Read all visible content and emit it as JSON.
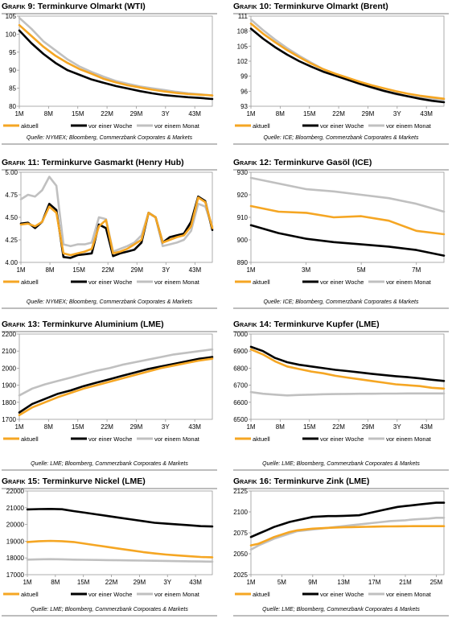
{
  "colors": {
    "aktuell": "#f5a623",
    "woche": "#000000",
    "monat": "#c0c0c0",
    "frame": "#999999"
  },
  "legend": {
    "aktuell": "aktuell",
    "woche": "vor einer Woche",
    "monat": "vor einem Monat"
  },
  "chart_data": [
    {
      "type": "line",
      "prefix": "Grafik 9",
      "title": "Terminkurve Olmarkt (WTI)",
      "source": "Quelle: NYMEX; Bloomberg, Commerzbank Corporates & Markets",
      "xticks": [
        "1M",
        "8M",
        "15M",
        "22M",
        "29M",
        "3Y",
        "43M"
      ],
      "ylim": [
        80,
        105
      ],
      "yticks": [
        80,
        85,
        90,
        95,
        100,
        105
      ],
      "series": [
        {
          "key": "aktuell",
          "values": [
            102.5,
            99.5,
            96.5,
            94,
            92,
            90.3,
            89,
            87.6,
            86.6,
            85.8,
            85.2,
            84.6,
            84.1,
            83.7,
            83.4,
            83.2,
            83
          ]
        },
        {
          "key": "woche",
          "values": [
            101,
            97.5,
            94.5,
            92,
            90,
            88.7,
            87.4,
            86.5,
            85.6,
            84.9,
            84.2,
            83.6,
            83.1,
            82.8,
            82.5,
            82.3,
            82
          ]
        },
        {
          "key": "monat",
          "values": [
            104.5,
            101.5,
            98,
            95.5,
            93,
            91,
            89.5,
            88.2,
            87,
            86.2,
            85.5,
            85,
            84.5,
            84,
            83.6,
            83.3,
            83
          ]
        }
      ]
    },
    {
      "type": "line",
      "prefix": "Grafik 10",
      "title": "Terminkurve Olmarkt (Brent)",
      "source": "Quelle: ICE; Bloomberg, Commerzbank Corporates & Markets",
      "xticks": [
        "1M",
        "8M",
        "15M",
        "22M",
        "29M",
        "3Y",
        "43M"
      ],
      "ylim": [
        93,
        111
      ],
      "yticks": [
        93,
        96,
        99,
        102,
        105,
        108,
        111
      ],
      "series": [
        {
          "key": "aktuell",
          "values": [
            109.5,
            107.5,
            105.8,
            104.2,
            102.8,
            101.5,
            100.4,
            99.5,
            98.7,
            97.9,
            97.2,
            96.6,
            96,
            95.5,
            95.1,
            94.8,
            94.5
          ]
        },
        {
          "key": "woche",
          "values": [
            108.5,
            106.5,
            104.8,
            103.3,
            102,
            100.9,
            99.9,
            99.1,
            98.3,
            97.5,
            96.8,
            96.1,
            95.5,
            95,
            94.5,
            94.1,
            93.8
          ]
        },
        {
          "key": "monat",
          "values": [
            110.3,
            108.2,
            106.3,
            104.6,
            103.1,
            101.7,
            100.4,
            99.4,
            98.4,
            97.5,
            96.7,
            96,
            95.4,
            95,
            94.7,
            94.5,
            94.3
          ]
        }
      ]
    },
    {
      "type": "line",
      "prefix": "Grafik 11",
      "title": "Terminkurve Gasmarkt (Henry Hub)",
      "source": "Quelle: NYMEX; Bloomberg, Commerzbank Corporates & Markets",
      "xticks": [
        "1M",
        "8M",
        "15M",
        "22M",
        "29M",
        "3Y",
        "43M"
      ],
      "ylim": [
        4,
        5
      ],
      "yticks": [
        4.0,
        4.25,
        4.5,
        4.75,
        5.0
      ],
      "ydec": 2,
      "series": [
        {
          "key": "aktuell",
          "values": [
            4.42,
            4.43,
            4.4,
            4.45,
            4.62,
            4.55,
            4.1,
            4.08,
            4.1,
            4.12,
            4.15,
            4.4,
            4.47,
            4.1,
            4.12,
            4.15,
            4.2,
            4.25,
            4.55,
            4.5,
            4.22,
            4.25,
            4.28,
            4.3,
            4.4,
            4.72,
            4.67,
            4.38
          ]
        },
        {
          "key": "woche",
          "values": [
            4.43,
            4.44,
            4.38,
            4.45,
            4.65,
            4.58,
            4.06,
            4.05,
            4.08,
            4.09,
            4.1,
            4.42,
            4.38,
            4.07,
            4.1,
            4.12,
            4.14,
            4.22,
            4.55,
            4.5,
            4.22,
            4.28,
            4.3,
            4.32,
            4.45,
            4.73,
            4.68,
            4.36
          ]
        },
        {
          "key": "monat",
          "values": [
            4.7,
            4.75,
            4.73,
            4.8,
            4.95,
            4.85,
            4.2,
            4.18,
            4.2,
            4.2,
            4.22,
            4.5,
            4.48,
            4.12,
            4.15,
            4.18,
            4.22,
            4.3,
            4.55,
            4.5,
            4.18,
            4.2,
            4.22,
            4.25,
            4.35,
            4.65,
            4.62,
            4.4
          ]
        }
      ]
    },
    {
      "type": "line",
      "prefix": "Grafik 12",
      "title": "Terminkurve Gasöl (ICE)",
      "source": "Quelle: ICE; Bloomberg, Commerzbank Corporates & Markets",
      "xticks": [
        "1M",
        "3M",
        "5M",
        "7M"
      ],
      "xpos": [
        0,
        2,
        4,
        6
      ],
      "xn": 8,
      "ylim": [
        890,
        930
      ],
      "yticks": [
        890,
        900,
        910,
        920,
        930
      ],
      "series": [
        {
          "key": "aktuell",
          "values": [
            915,
            912.5,
            912,
            910,
            910.5,
            908.5,
            904,
            902.5
          ]
        },
        {
          "key": "woche",
          "values": [
            906.5,
            903,
            900.5,
            899,
            898,
            897,
            895.5,
            893
          ]
        },
        {
          "key": "monat",
          "values": [
            927.5,
            925,
            922.5,
            921.5,
            920,
            918.5,
            916,
            912.5
          ]
        }
      ]
    },
    {
      "type": "line",
      "prefix": "Grafik 13",
      "title": "Terminkurve Aluminium (LME)",
      "source": "Quelle: LME; Bloomberg, Commerzbank Corporates & Markets",
      "xticks": [
        "1M",
        "8M",
        "15M",
        "22M",
        "29M",
        "3Y",
        "43M"
      ],
      "ylim": [
        1700,
        2200
      ],
      "yticks": [
        1700,
        1800,
        1900,
        2000,
        2100,
        2200
      ],
      "series": [
        {
          "key": "aktuell",
          "values": [
            1725,
            1770,
            1800,
            1830,
            1855,
            1880,
            1900,
            1920,
            1940,
            1960,
            1980,
            2000,
            2015,
            2030,
            2045,
            2055
          ]
        },
        {
          "key": "woche",
          "values": [
            1740,
            1790,
            1820,
            1850,
            1870,
            1895,
            1915,
            1935,
            1955,
            1975,
            1995,
            2010,
            2025,
            2040,
            2055,
            2065
          ]
        },
        {
          "key": "monat",
          "values": [
            1840,
            1880,
            1905,
            1925,
            1945,
            1965,
            1985,
            2000,
            2020,
            2035,
            2050,
            2065,
            2080,
            2090,
            2100,
            2110
          ]
        }
      ]
    },
    {
      "type": "line",
      "prefix": "Grafik 14",
      "title": "Terminkurve Kupfer (LME)",
      "source": "Quelle: LME; Bloomberg, Commerzbank Corporates & Markets",
      "xticks": [
        "1M",
        "8M",
        "15M",
        "22M",
        "29M",
        "3Y",
        "43M"
      ],
      "ylim": [
        6500,
        7000
      ],
      "yticks": [
        6500,
        6600,
        6700,
        6800,
        6900,
        7000
      ],
      "series": [
        {
          "key": "aktuell",
          "values": [
            6910,
            6880,
            6840,
            6810,
            6795,
            6780,
            6770,
            6755,
            6745,
            6735,
            6725,
            6715,
            6705,
            6700,
            6695,
            6685,
            6680
          ]
        },
        {
          "key": "woche",
          "values": [
            6925,
            6900,
            6860,
            6835,
            6820,
            6810,
            6800,
            6790,
            6783,
            6775,
            6767,
            6760,
            6753,
            6747,
            6740,
            6732,
            6725
          ]
        },
        {
          "key": "monat",
          "values": [
            6660,
            6650,
            6645,
            6640,
            6643,
            6645,
            6647,
            6648,
            6649,
            6650,
            6650,
            6651,
            6651,
            6652,
            6652,
            6652,
            6652
          ]
        }
      ]
    },
    {
      "type": "line",
      "prefix": "Grafik 15",
      "title": "Terminkurve Nickel (LME)",
      "source": "Quelle: LME; Bloomberg, Commerzbank Corporates & Markets",
      "xticks": [
        "1M",
        "8M",
        "15M",
        "22M",
        "29M",
        "3Y",
        "43M"
      ],
      "ylim": [
        17000,
        22000
      ],
      "yticks": [
        17000,
        18000,
        19000,
        20000,
        21000,
        22000
      ],
      "series": [
        {
          "key": "aktuell",
          "values": [
            18950,
            19000,
            19020,
            19000,
            18950,
            18850,
            18750,
            18650,
            18550,
            18450,
            18350,
            18270,
            18200,
            18150,
            18100,
            18060,
            18040
          ]
        },
        {
          "key": "woche",
          "values": [
            20900,
            20920,
            20930,
            20910,
            20800,
            20700,
            20600,
            20500,
            20400,
            20300,
            20200,
            20100,
            20050,
            20000,
            19950,
            19900,
            19880
          ]
        },
        {
          "key": "monat",
          "values": [
            17900,
            17920,
            17930,
            17920,
            17900,
            17890,
            17880,
            17870,
            17860,
            17850,
            17840,
            17830,
            17820,
            17810,
            17800,
            17790,
            17780
          ]
        }
      ]
    },
    {
      "type": "line",
      "prefix": "Grafik 16",
      "title": "Terminkurve Zink (LME)",
      "source": "Quelle: LME; Bloomberg, Commerzbank Corporates & Markets",
      "xticks": [
        "1M",
        "5M",
        "9M",
        "13M",
        "17M",
        "21M",
        "25M"
      ],
      "xpos": [
        0,
        4,
        8,
        12,
        16,
        20,
        24
      ],
      "xn": 26,
      "ylim": [
        2025,
        2125
      ],
      "yticks": [
        2025,
        2050,
        2075,
        2100,
        2125
      ],
      "series": [
        {
          "key": "aktuell",
          "values": [
            2060,
            2062,
            2066,
            2070,
            2073,
            2076,
            2078,
            2079,
            2080,
            2080.5,
            2081,
            2081.3,
            2081.6,
            2081.8,
            2082,
            2082.2,
            2082.4,
            2082.6,
            2082.7,
            2082.8,
            2082.9,
            2083,
            2083,
            2083,
            2083,
            2083
          ]
        },
        {
          "key": "woche",
          "values": [
            2070,
            2074,
            2078,
            2082,
            2085,
            2088,
            2090,
            2092,
            2094,
            2094.5,
            2095,
            2095,
            2095.3,
            2095.6,
            2096,
            2098,
            2100,
            2102,
            2104,
            2106,
            2107,
            2108,
            2109,
            2110,
            2111,
            2111
          ]
        },
        {
          "key": "monat",
          "values": [
            2055,
            2060,
            2064,
            2068,
            2071,
            2074,
            2077,
            2078,
            2079,
            2080,
            2081,
            2082,
            2083,
            2084,
            2085,
            2086,
            2087,
            2088,
            2089,
            2089.5,
            2090,
            2091,
            2091.5,
            2092,
            2093,
            2093
          ]
        }
      ]
    }
  ]
}
